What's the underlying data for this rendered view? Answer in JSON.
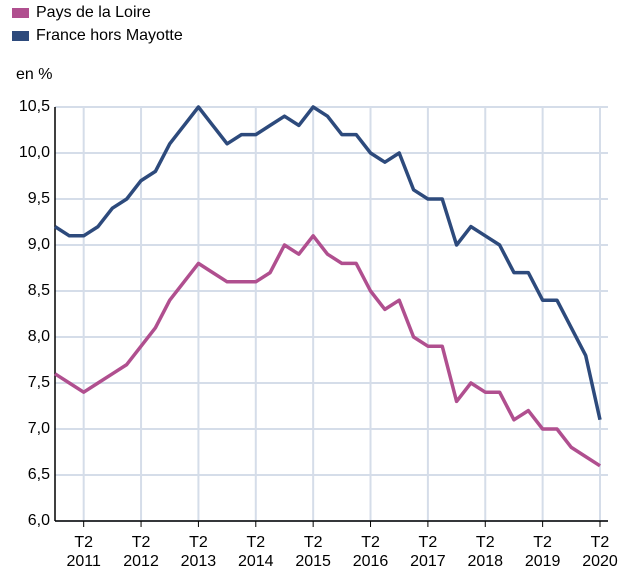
{
  "chart_data": {
    "type": "line",
    "y_label": "en %",
    "categories": [
      null,
      null,
      "T2 2011",
      null,
      null,
      null,
      "T2 2012",
      null,
      null,
      null,
      "T2 2013",
      null,
      null,
      null,
      "T2 2014",
      null,
      null,
      null,
      "T2 2015",
      null,
      null,
      null,
      "T2 2016",
      null,
      null,
      null,
      "T2 2017",
      null,
      null,
      null,
      "T2 2018",
      null,
      null,
      null,
      "T2 2019",
      null,
      null,
      null,
      "T2 2020"
    ],
    "series": [
      {
        "name": "Pays de la Loire",
        "color": "#b04f8f",
        "values": [
          7.6,
          7.5,
          7.4,
          7.5,
          7.6,
          7.7,
          7.9,
          8.1,
          8.4,
          8.6,
          8.8,
          8.7,
          8.6,
          8.6,
          8.6,
          8.7,
          9.0,
          8.9,
          9.1,
          8.9,
          8.8,
          8.8,
          8.5,
          8.3,
          8.4,
          8.0,
          7.9,
          7.9,
          7.3,
          7.5,
          7.4,
          7.4,
          7.1,
          7.2,
          7.0,
          7.0,
          6.8,
          6.7,
          6.6
        ]
      },
      {
        "name": "France hors Mayotte",
        "color": "#2d4a7c",
        "values": [
          9.2,
          9.1,
          9.1,
          9.2,
          9.4,
          9.5,
          9.7,
          9.8,
          10.1,
          10.3,
          10.5,
          10.3,
          10.1,
          10.2,
          10.2,
          10.3,
          10.4,
          10.3,
          10.5,
          10.4,
          10.2,
          10.2,
          10.0,
          9.9,
          10.0,
          9.6,
          9.5,
          9.5,
          9.0,
          9.2,
          9.1,
          9.0,
          8.7,
          8.7,
          8.4,
          8.4,
          8.1,
          7.8,
          7.1
        ]
      }
    ],
    "ylim": [
      6.0,
      10.5
    ],
    "yticks": [
      {
        "value": 6.0,
        "label": "6,0"
      },
      {
        "value": 6.5,
        "label": "6,5"
      },
      {
        "value": 7.0,
        "label": "7,0"
      },
      {
        "value": 7.5,
        "label": "7,5"
      },
      {
        "value": 8.0,
        "label": "8,0"
      },
      {
        "value": 8.5,
        "label": "8,5"
      },
      {
        "value": 9.0,
        "label": "9,0"
      },
      {
        "value": 9.5,
        "label": "9,5"
      },
      {
        "value": 10.0,
        "label": "10,0"
      },
      {
        "value": 10.5,
        "label": "10,5"
      }
    ],
    "grid": true
  }
}
